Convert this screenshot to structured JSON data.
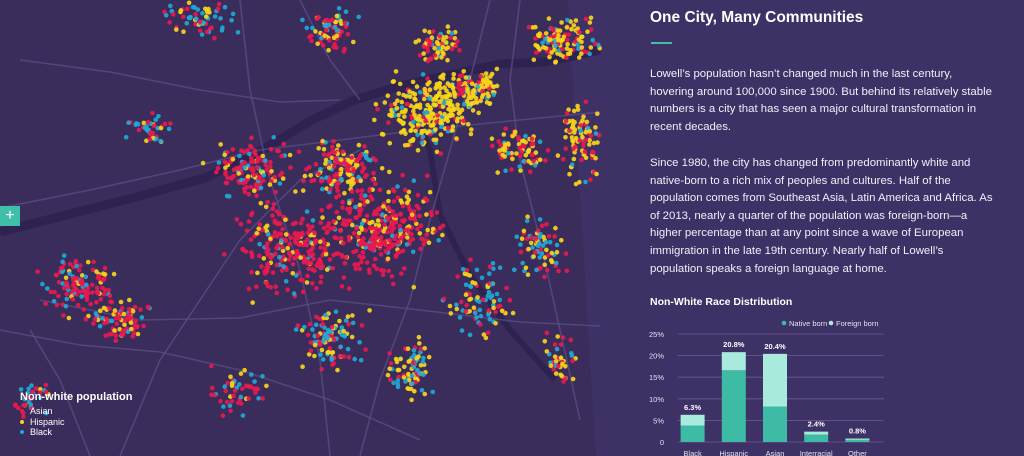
{
  "map": {
    "expand_button_label": "+",
    "legend": {
      "title": "Non-white population",
      "items": [
        {
          "label": "Asian",
          "color": "#e8194f"
        },
        {
          "label": "Hispanic",
          "color": "#f7d519"
        },
        {
          "label": "Black",
          "color": "#1fa9d6"
        }
      ]
    }
  },
  "article": {
    "title": "One City, Many Communities",
    "paragraphs": [
      "Lowell’s population hasn’t changed much in the last century, hovering around 100,000 since 1900. But behind its relatively stable numbers is a city that has seen a major cultural transformation in recent decades.",
      "Since 1980, the city has changed from predominantly white and native-born to a rich mix of peoples and cultures. Half of the population comes from Southeast Asia, Latin America and Africa. As of 2013, nearly a quarter of the population was foreign-born—a higher percentage than at any point since a wave of European immigration in the late 19th century. Nearly half of Lowell’s population speaks a foreign language at home."
    ]
  },
  "chart_data": {
    "type": "bar",
    "stacked": true,
    "title": "Non-White Race Distribution",
    "categories": [
      "Black",
      "Hispanic",
      "Asian",
      "Interracial",
      "Other"
    ],
    "totals_labels": [
      "6.3%",
      "20.8%",
      "20.4%",
      "2.4%",
      "0.8%"
    ],
    "series": [
      {
        "name": "Native born",
        "color": "#3dbba4",
        "values": [
          3.8,
          16.6,
          8.2,
          1.7,
          0.5
        ]
      },
      {
        "name": "Foreign born",
        "color": "#a8ebdd",
        "values": [
          2.5,
          4.2,
          12.2,
          0.7,
          0.3
        ]
      }
    ],
    "ylim": [
      0,
      25
    ],
    "yticks": [
      "0",
      "5%",
      "10%",
      "15%",
      "20%",
      "25%"
    ],
    "legend_position": "top-right",
    "grid": true
  }
}
